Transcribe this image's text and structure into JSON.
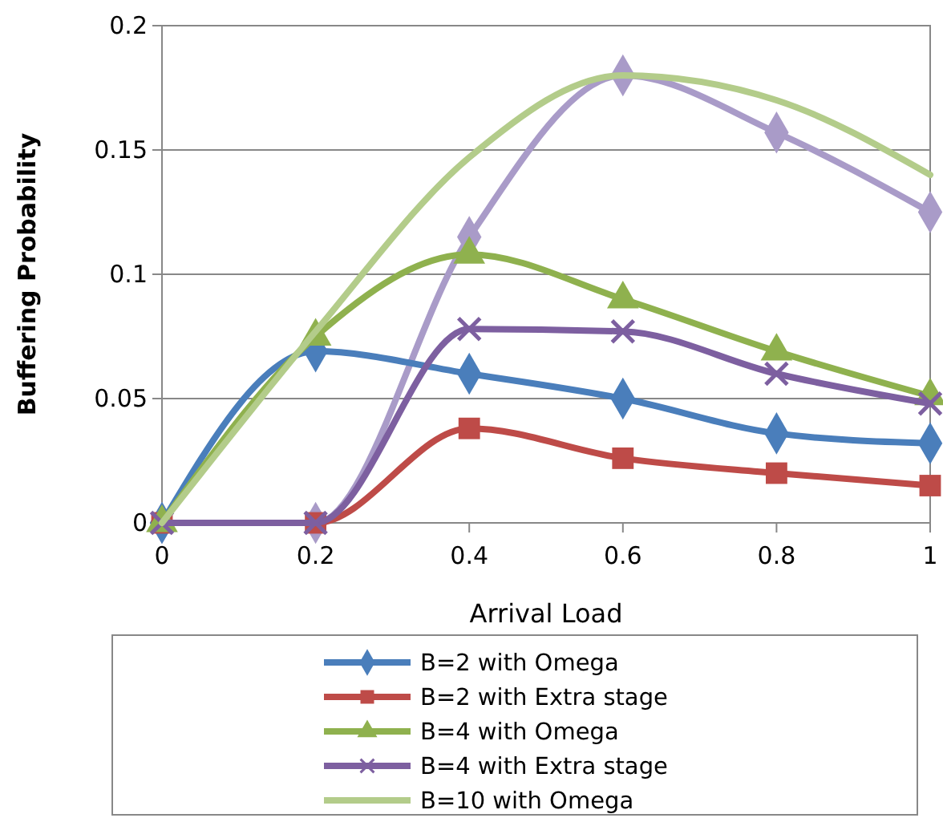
{
  "chart_data": {
    "type": "line",
    "xlabel": "Arrival Load",
    "ylabel": "Buffering Probability",
    "x": [
      0,
      0.2,
      0.4,
      0.6,
      0.8,
      1
    ],
    "xlim": [
      0,
      1
    ],
    "xticks": [
      0,
      0.2,
      0.4,
      0.6,
      0.8,
      1
    ],
    "ylim": [
      0,
      0.2
    ],
    "yticks": [
      0,
      0.05,
      0.1,
      0.15,
      0.2
    ],
    "grid": "y",
    "legend": "bottom",
    "series": [
      {
        "color": "#a99bc8",
        "marker": "diamond",
        "values": [
          0,
          0,
          0.115,
          0.18,
          0.157,
          0.125
        ]
      },
      {
        "name": "B=2 with Omega",
        "color": "#4a7ebb",
        "marker": "diamond",
        "values": [
          0,
          0.069,
          0.06,
          0.05,
          0.036,
          0.032
        ]
      },
      {
        "name": "B=2 with Extra stage",
        "color": "#be4b48",
        "marker": "square",
        "values": [
          0,
          0,
          0.038,
          0.026,
          0.02,
          0.015
        ]
      },
      {
        "name": "B=4 with Omega",
        "color": "#8fb14e",
        "marker": "triangle",
        "values": [
          0,
          0.075,
          0.108,
          0.09,
          0.069,
          0.051
        ]
      },
      {
        "name": "B=4 with Extra stage",
        "color": "#7d5fa0",
        "marker": "cross",
        "values": [
          0,
          0,
          0.078,
          0.077,
          0.06,
          0.048
        ]
      },
      {
        "name": "B=10 with Omega",
        "color": "#b3cc8a",
        "marker": "none",
        "values": [
          0,
          0.077,
          0.147,
          0.18,
          0.17,
          0.14
        ]
      }
    ]
  }
}
